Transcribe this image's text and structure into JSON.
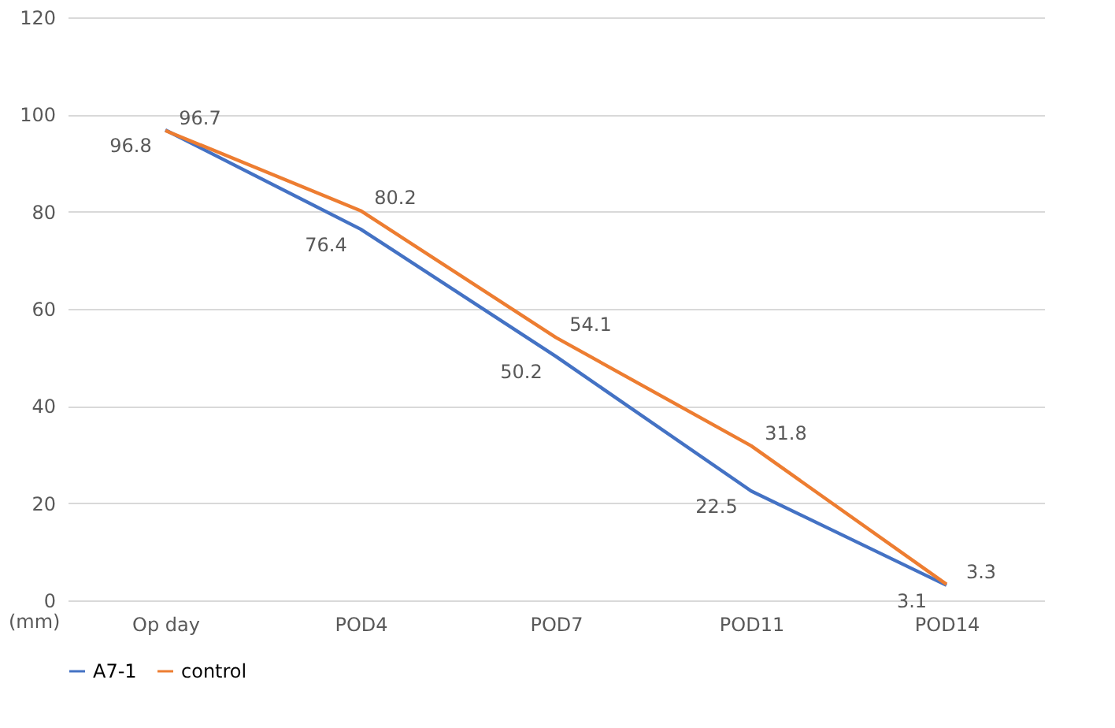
{
  "chart_data": {
    "type": "line",
    "ylabel": "(mm)",
    "categories": [
      "Op day",
      "POD4",
      "POD7",
      "POD11",
      "POD14"
    ],
    "series": [
      {
        "name": "A7-1",
        "color": "#4472c4",
        "values": [
          96.8,
          76.4,
          50.2,
          22.5,
          3.1
        ]
      },
      {
        "name": "control",
        "color": "#ed7d31",
        "values": [
          96.7,
          80.2,
          54.1,
          31.8,
          3.3
        ]
      }
    ],
    "ylim": [
      0,
      120
    ],
    "yticks": [
      0,
      20,
      40,
      60,
      80,
      100,
      120
    ],
    "grid": "y",
    "legend": "bottom",
    "data_labels": true,
    "marker": "none",
    "line_style": "solid"
  }
}
